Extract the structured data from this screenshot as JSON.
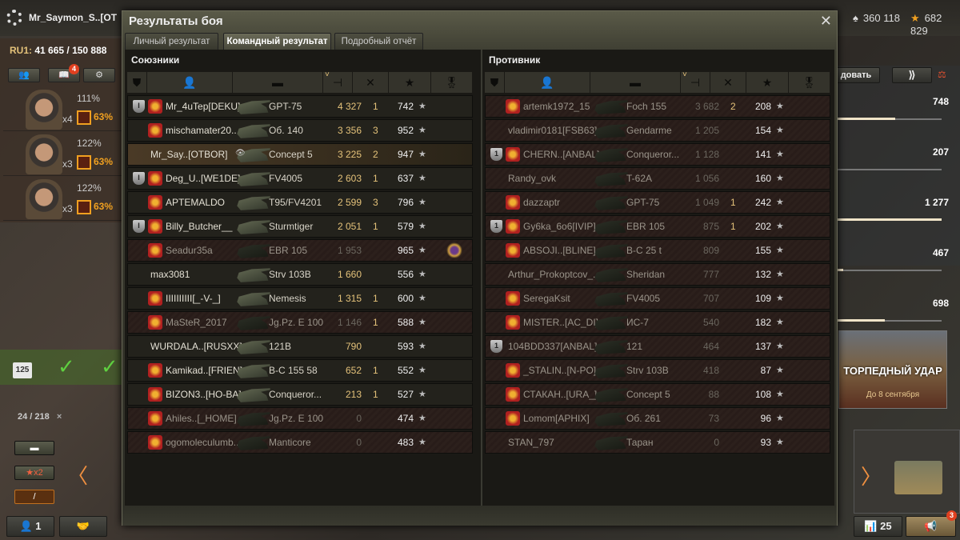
{
  "topbar": {
    "player_name": "Mr_Saymon_S..[OT",
    "silver": "360 118",
    "gold": "682 829"
  },
  "left": {
    "server_label": "RU1:",
    "server_value": "41 665 / 150 888",
    "notif_badge": "4",
    "crew": [
      {
        "multiplier": "x4",
        "skill": "111%",
        "training": "63%"
      },
      {
        "multiplier": "x3",
        "skill": "122%",
        "training": "63%"
      },
      {
        "multiplier": "x3",
        "skill": "122%",
        "training": "63%"
      }
    ],
    "ticket_count": "125",
    "progress": "24 / 218",
    "progress_close": "×",
    "boost_label": "x2",
    "platoon_count": "1"
  },
  "right": {
    "button_label": "довать",
    "bars": [
      {
        "value": "748",
        "fill": 0.55
      },
      {
        "value": "207",
        "fill": 0.0
      },
      {
        "value": "1 277",
        "fill": 1.0
      },
      {
        "value": "467",
        "fill": 0.05
      },
      {
        "value": "698",
        "fill": 0.45
      }
    ],
    "event_title": "ТОРПЕДНЫЙ УДАР",
    "event_date": "До 8 сентября",
    "stats_count": "25",
    "mega_badge": "3"
  },
  "modal": {
    "title": "Результаты боя",
    "close": "✕",
    "tabs": [
      {
        "label": "Личный результат",
        "active": false
      },
      {
        "label": "Командный результат",
        "active": true
      },
      {
        "label": "Подробный отчёт",
        "active": false
      }
    ],
    "allies": {
      "title": "Союзники",
      "rows": [
        {
          "platoon": "I",
          "clan": true,
          "name": "Mr_4uTep[DEKU]",
          "tank": "GPT-75",
          "damage": "4 327",
          "kills": "1",
          "xp": "742",
          "dead": false
        },
        {
          "platoon": "",
          "clan": true,
          "name": "mischamater20..",
          "tank": "Об. 140",
          "damage": "3 356",
          "kills": "3",
          "xp": "952",
          "dead": false
        },
        {
          "platoon": "",
          "clan": false,
          "name": "Mr_Say..[OTBOR]",
          "tank": "Concept 5",
          "damage": "3 225",
          "kills": "2",
          "xp": "947",
          "dead": false,
          "self": true
        },
        {
          "platoon": "I",
          "clan": true,
          "name": "Deg_U..[WE1DE]",
          "tank": "FV4005",
          "damage": "2 603",
          "kills": "1",
          "xp": "637",
          "dead": false
        },
        {
          "platoon": "",
          "clan": true,
          "name": "APTEMALDO",
          "tank": "T95/FV4201",
          "damage": "2 599",
          "kills": "3",
          "xp": "796",
          "dead": false
        },
        {
          "platoon": "I",
          "clan": true,
          "name": "Billy_Butcher__",
          "tank": "Sturmtiger",
          "damage": "2 051",
          "kills": "1",
          "xp": "579",
          "dead": false
        },
        {
          "platoon": "",
          "clan": true,
          "name": "Seadur35a",
          "tank": "EBR 105",
          "damage": "1 953",
          "kills": "",
          "xp": "965",
          "dead": true,
          "medal": true
        },
        {
          "platoon": "",
          "clan": false,
          "name": "max3081",
          "tank": "Strv 103B",
          "damage": "1 660",
          "kills": "",
          "xp": "556",
          "dead": false
        },
        {
          "platoon": "",
          "clan": true,
          "name": "IIIIIIIIII[_-V-_]",
          "tank": "Nemesis",
          "damage": "1 315",
          "kills": "1",
          "xp": "600",
          "dead": false
        },
        {
          "platoon": "",
          "clan": true,
          "name": "MaSteR_2017",
          "tank": "Jg.Pz. E 100",
          "damage": "1 146",
          "kills": "1",
          "xp": "588",
          "dead": true
        },
        {
          "platoon": "",
          "clan": false,
          "name": "WURDALA..[RUSXX]",
          "tank": "121B",
          "damage": "790",
          "kills": "",
          "xp": "593",
          "dead": false
        },
        {
          "platoon": "",
          "clan": true,
          "name": "Kamikad..[FRIEN]",
          "tank": "B-C 155 58",
          "damage": "652",
          "kills": "1",
          "xp": "552",
          "dead": false
        },
        {
          "platoon": "",
          "clan": true,
          "name": "BIZON3..[HO-BA]",
          "tank": "Conqueror...",
          "damage": "213",
          "kills": "1",
          "xp": "527",
          "dead": false
        },
        {
          "platoon": "",
          "clan": true,
          "name": "Ahiles..[_HOME]",
          "tank": "Jg.Pz. E 100",
          "damage": "0",
          "kills": "",
          "xp": "474",
          "dead": true
        },
        {
          "platoon": "",
          "clan": true,
          "name": "ogomoleculumb..",
          "tank": "Manticore",
          "damage": "0",
          "kills": "",
          "xp": "483",
          "dead": true
        }
      ]
    },
    "enemies": {
      "title": "Противник",
      "rows": [
        {
          "platoon": "",
          "clan": true,
          "name": "artemk1972_15",
          "tank": "Foch 155",
          "damage": "3 682",
          "kills": "2",
          "xp": "208",
          "dead": true
        },
        {
          "platoon": "",
          "clan": false,
          "name": "vladimir0181[FSB63]",
          "tank": "Gendarme",
          "damage": "1 205",
          "kills": "",
          "xp": "154",
          "dead": true
        },
        {
          "platoon": "1",
          "clan": true,
          "name": "CHERN..[ANBAL]",
          "tank": "Conqueror...",
          "damage": "1 128",
          "kills": "",
          "xp": "141",
          "dead": true
        },
        {
          "platoon": "",
          "clan": false,
          "name": "Randy_ovk",
          "tank": "T-62A",
          "damage": "1 056",
          "kills": "",
          "xp": "160",
          "dead": true
        },
        {
          "platoon": "",
          "clan": true,
          "name": "dazzaptr",
          "tank": "GPT-75",
          "damage": "1 049",
          "kills": "1",
          "xp": "242",
          "dead": true
        },
        {
          "platoon": "1",
          "clan": true,
          "name": "Gy6ka_6o6[IVIP]",
          "tank": "EBR 105",
          "damage": "875",
          "kills": "1",
          "xp": "202",
          "dead": true
        },
        {
          "platoon": "",
          "clan": true,
          "name": "ABSOJI..[BLINE]",
          "tank": "B-C 25 t",
          "damage": "809",
          "kills": "",
          "xp": "155",
          "dead": true
        },
        {
          "platoon": "",
          "clan": false,
          "name": "Arthur_Prokoptcov_..",
          "tank": "Sheridan",
          "damage": "777",
          "kills": "",
          "xp": "132",
          "dead": true
        },
        {
          "platoon": "",
          "clan": true,
          "name": "SeregaKsit",
          "tank": "FV4005",
          "damage": "707",
          "kills": "",
          "xp": "109",
          "dead": true
        },
        {
          "platoon": "",
          "clan": true,
          "name": "MISTER..[AC_DI]",
          "tank": "ИС-7",
          "damage": "540",
          "kills": "",
          "xp": "182",
          "dead": true
        },
        {
          "platoon": "1",
          "clan": false,
          "name": "104BDD337[ANBAL]",
          "tank": "121",
          "damage": "464",
          "kills": "",
          "xp": "137",
          "dead": true
        },
        {
          "platoon": "",
          "clan": true,
          "name": "_STALIN..[N-PO]",
          "tank": "Strv 103B",
          "damage": "418",
          "kills": "",
          "xp": "87",
          "dead": true
        },
        {
          "platoon": "",
          "clan": true,
          "name": "СТАКАН..[URA_]",
          "tank": "Concept 5",
          "damage": "88",
          "kills": "",
          "xp": "108",
          "dead": true
        },
        {
          "platoon": "",
          "clan": true,
          "name": "Lomom[APHIX]",
          "tank": "Об. 261",
          "damage": "73",
          "kills": "",
          "xp": "96",
          "dead": true
        },
        {
          "platoon": "",
          "clan": false,
          "name": "STAN_797",
          "tank": "Таран",
          "damage": "0",
          "kills": "",
          "xp": "93",
          "dead": true
        }
      ]
    }
  },
  "icons": {
    "star": "★",
    "eye_hidden": "👁",
    "check": "✓",
    "arrow_left": "〈",
    "arrow_right": "〉"
  }
}
